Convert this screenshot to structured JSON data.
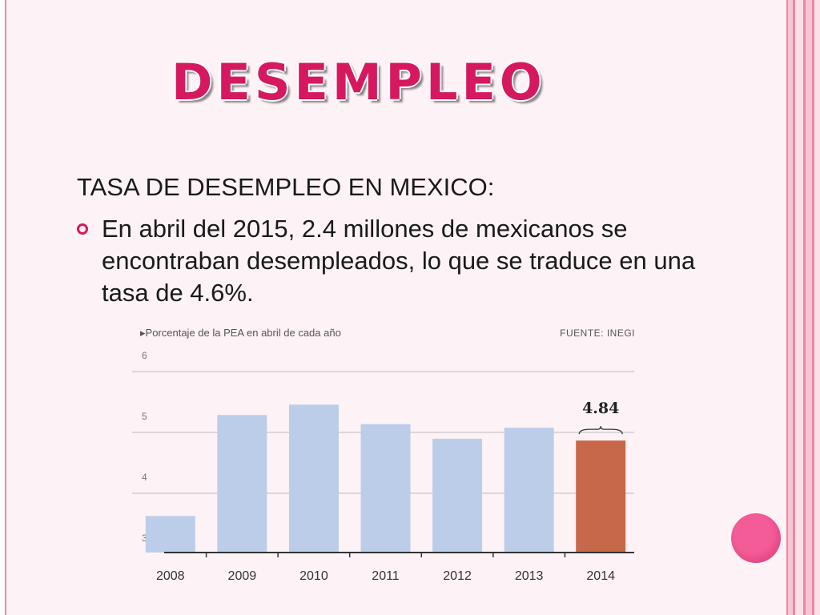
{
  "slide": {
    "title": "DESEMPLEO",
    "subtitle": "TASA DE DESEMPLEO EN MEXICO:",
    "bullet": "En abril del 2015, 2.4 millones de mexicanos se encontraban desempleados, lo que se traduce en una tasa de 4.6%."
  },
  "colors": {
    "accent": "#d6185f",
    "bar": "#bccde9",
    "highlight_bar": "#c8684a",
    "dot": "#f45c97"
  },
  "chart_data": {
    "type": "bar",
    "caption": "▸Porcentaje de la PEA en abril de cada año",
    "source": "FUENTE: INEGI",
    "categories": [
      "2008",
      "2009",
      "2010",
      "2011",
      "2012",
      "2013",
      "2014"
    ],
    "values": [
      3.6,
      5.26,
      5.43,
      5.11,
      4.87,
      5.05,
      4.84
    ],
    "highlight_index": 6,
    "highlight_label": "4.84",
    "ylim": [
      3,
      6
    ],
    "yticks": [
      "3",
      "4",
      "5",
      "6"
    ],
    "grid": true
  }
}
